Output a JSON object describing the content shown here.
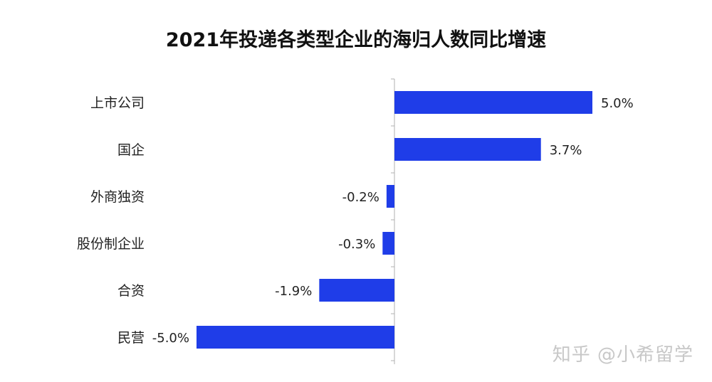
{
  "chart_data": {
    "type": "bar",
    "orientation": "horizontal",
    "title": "2021年投递各类型企业的海归人数同比增速",
    "categories": [
      "上市公司",
      "国企",
      "外商独资",
      "股份制企业",
      "合资",
      "民营"
    ],
    "values": [
      5.0,
      3.7,
      -0.2,
      -0.3,
      -1.9,
      -5.0
    ],
    "value_labels": [
      "5.0%",
      "3.7%",
      "-0.2%",
      "-0.3%",
      "-1.9%",
      "-5.0%"
    ],
    "unit": "%",
    "xlim": [
      -5.0,
      5.0
    ],
    "grid": false,
    "legend": "none",
    "bar_color": "#1f3de8",
    "axis_color": "#b0b0b0"
  },
  "watermark": "知乎 @小希留学"
}
